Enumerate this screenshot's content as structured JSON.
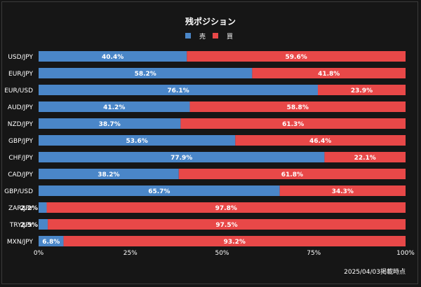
{
  "chart_data": {
    "type": "bar",
    "orientation": "horizontal",
    "stacked": true,
    "title": "残ポジション",
    "categories": [
      "USD/JPY",
      "EUR/JPY",
      "EUR/USD",
      "AUD/JPY",
      "NZD/JPY",
      "GBP/JPY",
      "CHF/JPY",
      "CAD/JPY",
      "GBP/USD",
      "ZAR/JPY",
      "TRY/JPY",
      "MXN/JPY"
    ],
    "series": [
      {
        "name": "売",
        "color": "#4a86c8",
        "values": [
          40.4,
          58.2,
          76.1,
          41.2,
          38.7,
          53.6,
          77.9,
          38.2,
          65.7,
          2.2,
          2.5,
          6.8
        ],
        "labels": [
          "40.4%",
          "58.2%",
          "76.1%",
          "41.2%",
          "38.7%",
          "53.6%",
          "77.9%",
          "38.2%",
          "65.7%",
          "2.2%",
          "2.5%",
          "6.8%"
        ]
      },
      {
        "name": "買",
        "color": "#e84848",
        "values": [
          59.6,
          41.8,
          23.9,
          58.8,
          61.3,
          46.4,
          22.1,
          61.8,
          34.3,
          97.8,
          97.5,
          93.2
        ],
        "labels": [
          "59.6%",
          "41.8%",
          "23.9%",
          "58.8%",
          "61.3%",
          "46.4%",
          "22.1%",
          "61.8%",
          "34.3%",
          "97.8%",
          "97.5%",
          "93.2%"
        ]
      }
    ],
    "xlim": [
      0,
      100
    ],
    "x_ticks": [
      0,
      25,
      50,
      75,
      100
    ],
    "x_tick_labels": [
      "0%",
      "25%",
      "50%",
      "75%",
      "100%"
    ],
    "grid": false,
    "legend_position": "top-center",
    "footnote": "2025/04/03掲載時点"
  }
}
